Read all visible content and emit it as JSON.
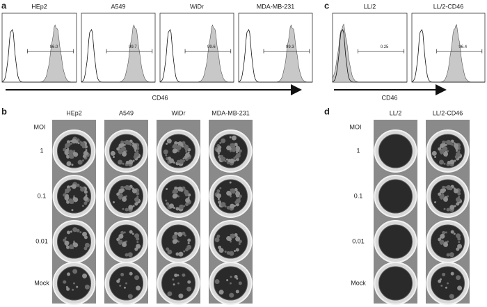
{
  "panels": {
    "a": {
      "label": "a",
      "histograms": [
        {
          "title": "HEp2",
          "gate": "96.0"
        },
        {
          "title": "A549",
          "gate": "99.7"
        },
        {
          "title": "WiDr",
          "gate": "99.6"
        },
        {
          "title": "MDA-MB-231",
          "gate": "99.3"
        }
      ],
      "axis_label": "CD46"
    },
    "c": {
      "label": "c",
      "histograms": [
        {
          "title": "LL/2",
          "gate": "0.25"
        },
        {
          "title": "LL/2-CD46",
          "gate": "96.4"
        }
      ],
      "axis_label": "CD46"
    },
    "b": {
      "label": "b",
      "row_header": "MOI",
      "columns": [
        "HEp2",
        "A549",
        "WiDr",
        "MDA-MB-231"
      ],
      "rows": [
        "1",
        "0.1",
        "0.01",
        "Mock"
      ]
    },
    "d": {
      "label": "d",
      "row_header": "MOI",
      "columns": [
        "LL/2",
        "LL/2-CD46"
      ],
      "rows": [
        "1",
        "0.1",
        "0.01",
        "Mock"
      ]
    }
  }
}
